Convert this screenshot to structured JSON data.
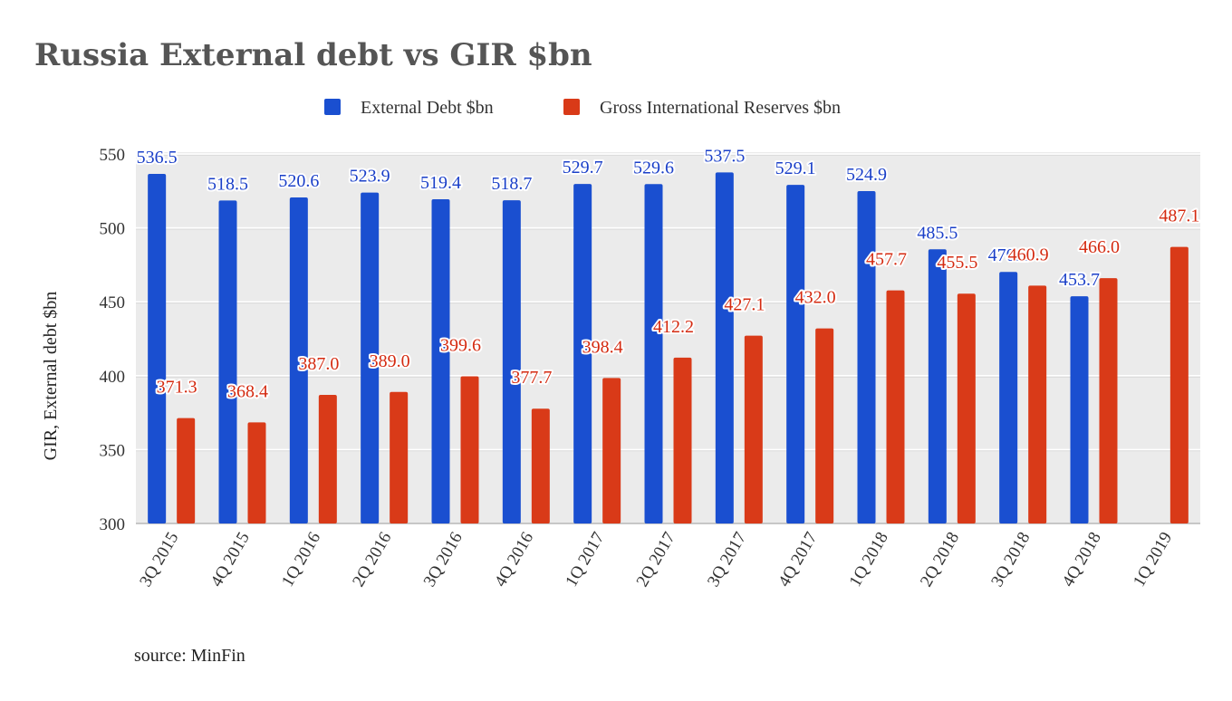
{
  "chart_data": {
    "type": "bar",
    "title": "Russia External debt vs GIR $bn",
    "ylabel": "GIR, External debt $bn",
    "xlabel": "",
    "ylim": [
      300,
      550
    ],
    "yticks": [
      300,
      350,
      400,
      450,
      500,
      550
    ],
    "grid": true,
    "legend_position": "top",
    "categories": [
      "3Q 2015",
      "4Q 2015",
      "1Q 2016",
      "2Q 2016",
      "3Q 2016",
      "4Q 2016",
      "1Q 2017",
      "2Q 2017",
      "3Q 2017",
      "4Q 2017",
      "1Q 2018",
      "2Q 2018",
      "3Q 2018",
      "4Q 2018",
      "1Q 2019"
    ],
    "series": [
      {
        "name": "External Debt $bn",
        "color": "#1a4fd0",
        "label_color": "#1a3fc8",
        "values": [
          536.5,
          518.5,
          520.6,
          523.9,
          519.4,
          518.7,
          529.7,
          529.6,
          537.5,
          529.1,
          524.9,
          485.5,
          470.2,
          453.7,
          null
        ],
        "labels": [
          "536.5",
          "518.5",
          "520.6",
          "523.9",
          "519.4",
          "518.7",
          "529.7",
          "529.6",
          "537.5",
          "529.1",
          "524.9",
          "485.5",
          "470.2",
          "453.7",
          ""
        ]
      },
      {
        "name": "Gross International Reserves $bn",
        "color": "#d93a18",
        "label_color": "#d42a10",
        "values": [
          371.3,
          368.4,
          387.0,
          389.0,
          399.6,
          377.7,
          398.4,
          412.2,
          427.1,
          432.0,
          457.7,
          455.5,
          460.9,
          466.0,
          487.1
        ],
        "labels": [
          "371.3",
          "368.4",
          "387.0",
          "389.0",
          "399.6",
          "377.7",
          "398.4",
          "412.2",
          "427.1",
          "432.0",
          "457.7",
          "455.5",
          "460.9",
          "466.0",
          "487.1"
        ]
      }
    ],
    "plot_background": "#ebebeb",
    "grid_color": "#ffffff"
  },
  "footer": {
    "source": "source: MinFin"
  }
}
